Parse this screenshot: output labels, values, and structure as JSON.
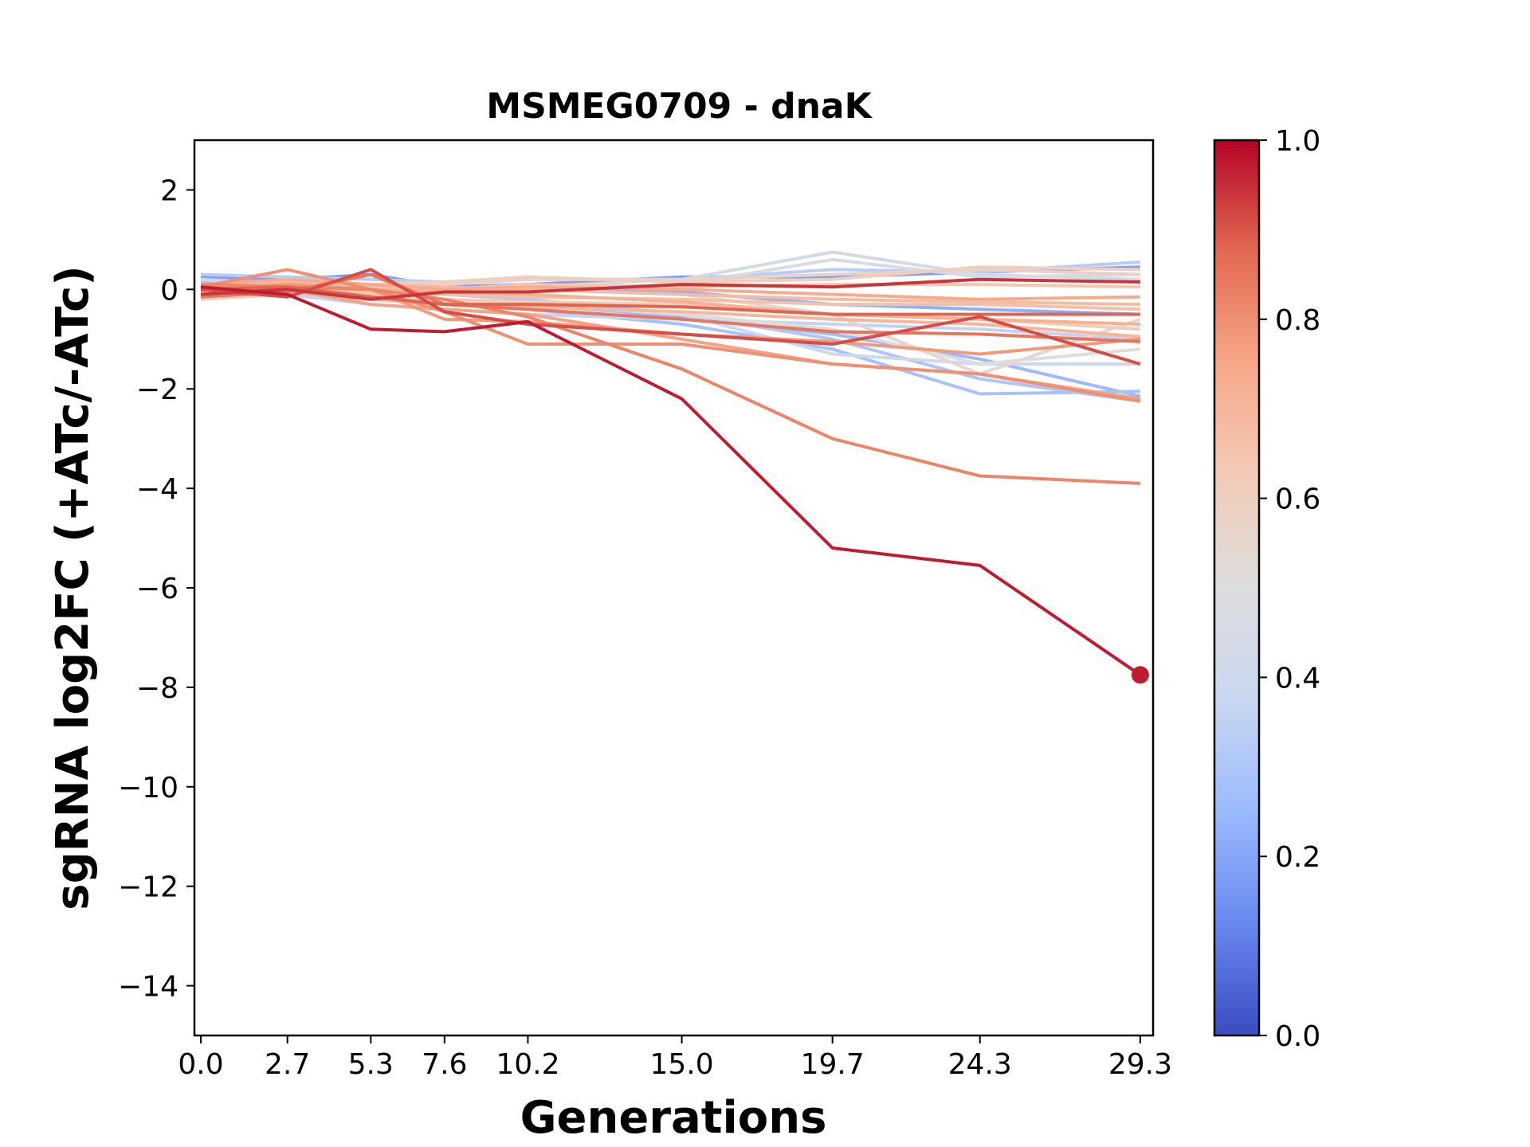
{
  "chart_data": {
    "type": "line",
    "title": "MSMEG0709 - dnaK",
    "xlabel": "Generations",
    "ylabel": "sgRNA log2FC (+ATc/-ATc)",
    "xlim": [
      -0.2,
      29.7
    ],
    "ylim": [
      -15,
      3
    ],
    "x_ticks": [
      0.0,
      2.7,
      5.3,
      7.6,
      10.2,
      15.0,
      19.7,
      24.3,
      29.3
    ],
    "x_tick_labels": [
      "0.0",
      "2.7",
      "5.3",
      "7.6",
      "10.2",
      "15.0",
      "19.7",
      "24.3",
      "29.3"
    ],
    "y_ticks": [
      2,
      0,
      -2,
      -4,
      -6,
      -8,
      -10,
      -12,
      -14
    ],
    "y_tick_labels": [
      "2",
      "0",
      "−2",
      "−4",
      "−6",
      "−8",
      "−10",
      "−12",
      "−14"
    ],
    "colorbar": {
      "colormap": "coolwarm",
      "range": [
        0.0,
        1.0
      ],
      "ticks": [
        0.0,
        0.2,
        0.4,
        0.6,
        0.8,
        1.0
      ],
      "tick_labels": [
        "0.0",
        "0.2",
        "0.4",
        "0.6",
        "0.8",
        "1.0"
      ],
      "stops": [
        "#3b4cc0",
        "#6788ee",
        "#9abbff",
        "#c9d7f0",
        "#dddddd",
        "#f2cbb7",
        "#f7a889",
        "#e26952",
        "#b40426"
      ]
    },
    "x": [
      0.0,
      2.7,
      5.3,
      7.6,
      10.2,
      15.0,
      19.7,
      24.3,
      29.3
    ],
    "series": [
      {
        "color_value": 0.18,
        "values": [
          0.25,
          0.2,
          0.3,
          0.05,
          0.1,
          0.25,
          0.25,
          0.35,
          0.45
        ]
      },
      {
        "color_value": 0.22,
        "values": [
          0.2,
          0.15,
          0.1,
          0.0,
          0.05,
          -0.05,
          -0.3,
          -0.4,
          -0.5
        ]
      },
      {
        "color_value": 0.25,
        "values": [
          0.1,
          0.05,
          -0.1,
          -0.2,
          -0.3,
          -0.55,
          -0.9,
          -1.4,
          -2.15
        ]
      },
      {
        "color_value": 0.28,
        "values": [
          0.05,
          0.0,
          -0.2,
          -0.3,
          -0.4,
          -0.7,
          -1.2,
          -2.1,
          -2.05
        ]
      },
      {
        "color_value": 0.3,
        "values": [
          0.15,
          0.1,
          0.0,
          -0.1,
          -0.2,
          -0.5,
          -1.0,
          -1.8,
          -2.25
        ]
      },
      {
        "color_value": 0.33,
        "values": [
          0.3,
          0.25,
          0.2,
          0.15,
          0.2,
          0.2,
          0.4,
          0.35,
          0.55
        ]
      },
      {
        "color_value": 0.36,
        "values": [
          0.0,
          -0.1,
          -0.3,
          -0.4,
          -0.5,
          -0.6,
          -0.7,
          -0.8,
          -1.0
        ]
      },
      {
        "color_value": 0.4,
        "values": [
          0.2,
          0.1,
          0.0,
          -0.2,
          -0.3,
          -0.5,
          -1.3,
          -1.5,
          -1.5
        ]
      },
      {
        "color_value": 0.43,
        "values": [
          0.1,
          0.15,
          0.1,
          0.0,
          0.05,
          0.2,
          0.75,
          0.3,
          0.2
        ]
      },
      {
        "color_value": 0.46,
        "values": [
          0.05,
          0.1,
          0.0,
          -0.05,
          0.0,
          0.1,
          0.6,
          0.25,
          0.3
        ]
      },
      {
        "color_value": 0.5,
        "values": [
          0.0,
          -0.05,
          -0.15,
          -0.25,
          -0.3,
          -0.5,
          -0.8,
          -1.5,
          -1.2
        ]
      },
      {
        "color_value": 0.54,
        "values": [
          0.1,
          0.05,
          0.0,
          -0.05,
          0.0,
          -0.1,
          -0.5,
          -1.7,
          -0.6
        ]
      },
      {
        "color_value": 0.58,
        "values": [
          -0.2,
          -0.1,
          0.0,
          0.1,
          0.2,
          0.2,
          0.3,
          0.4,
          0.3
        ]
      },
      {
        "color_value": 0.6,
        "values": [
          -0.15,
          0.0,
          0.1,
          0.15,
          0.25,
          0.15,
          0.2,
          0.45,
          0.4
        ]
      },
      {
        "color_value": 0.62,
        "values": [
          -0.1,
          -0.05,
          -0.1,
          -0.2,
          -0.25,
          -0.3,
          -0.5,
          -0.6,
          -0.8
        ]
      },
      {
        "color_value": 0.64,
        "values": [
          0.0,
          0.1,
          0.05,
          0.0,
          0.1,
          0.05,
          0.1,
          0.1,
          0.05
        ]
      },
      {
        "color_value": 0.66,
        "values": [
          -0.05,
          0.0,
          -0.05,
          -0.1,
          -0.15,
          -0.2,
          -0.3,
          -0.3,
          -0.4
        ]
      },
      {
        "color_value": 0.68,
        "values": [
          0.05,
          0.15,
          0.1,
          0.05,
          0.0,
          -0.1,
          -0.2,
          -0.25,
          -0.3
        ]
      },
      {
        "color_value": 0.7,
        "values": [
          -0.1,
          -0.05,
          -0.2,
          -0.3,
          -0.35,
          -0.45,
          -0.6,
          -0.7,
          -0.95
        ]
      },
      {
        "color_value": 0.72,
        "values": [
          0.0,
          0.05,
          0.0,
          -0.05,
          -0.1,
          -0.25,
          -0.5,
          -0.6,
          -0.7
        ]
      },
      {
        "color_value": 0.74,
        "values": [
          0.1,
          0.2,
          0.1,
          0.0,
          0.05,
          0.0,
          -0.1,
          -0.2,
          -0.15
        ]
      },
      {
        "color_value": 0.76,
        "values": [
          -0.05,
          0.0,
          -0.3,
          -0.4,
          -0.5,
          -1.0,
          -1.5,
          -1.7,
          -2.2
        ]
      },
      {
        "color_value": 0.78,
        "values": [
          0.0,
          0.1,
          0.0,
          -0.6,
          -0.65,
          -0.9,
          -1.05,
          -1.3,
          -1.0
        ]
      },
      {
        "color_value": 0.8,
        "values": [
          0.05,
          0.4,
          0.0,
          -0.45,
          -1.1,
          -1.1,
          -1.5,
          -1.7,
          -2.25
        ]
      },
      {
        "color_value": 0.82,
        "values": [
          0.1,
          0.05,
          0.0,
          -0.2,
          -0.55,
          -1.6,
          -3.0,
          -3.75,
          -3.9
        ]
      },
      {
        "color_value": 0.85,
        "values": [
          -0.15,
          -0.05,
          0.3,
          -0.3,
          -0.4,
          -0.6,
          -0.85,
          -0.9,
          -1.05
        ]
      },
      {
        "color_value": 0.88,
        "values": [
          0.0,
          0.05,
          -0.15,
          -0.3,
          -0.3,
          -0.35,
          -0.5,
          -0.5,
          -0.5
        ]
      },
      {
        "color_value": 0.91,
        "values": [
          0.0,
          -0.15,
          0.4,
          -0.45,
          -0.7,
          -0.9,
          -1.1,
          -0.55,
          -1.5
        ]
      },
      {
        "color_value": 0.94,
        "values": [
          -0.1,
          0.0,
          -0.2,
          -0.05,
          -0.05,
          0.1,
          0.05,
          0.2,
          0.15
        ]
      },
      {
        "color_value": 0.97,
        "values": [
          0.05,
          -0.1,
          -0.8,
          -0.85,
          -0.65,
          -2.2,
          -5.2,
          -5.55,
          -7.75
        ],
        "end_marker": true
      }
    ]
  }
}
